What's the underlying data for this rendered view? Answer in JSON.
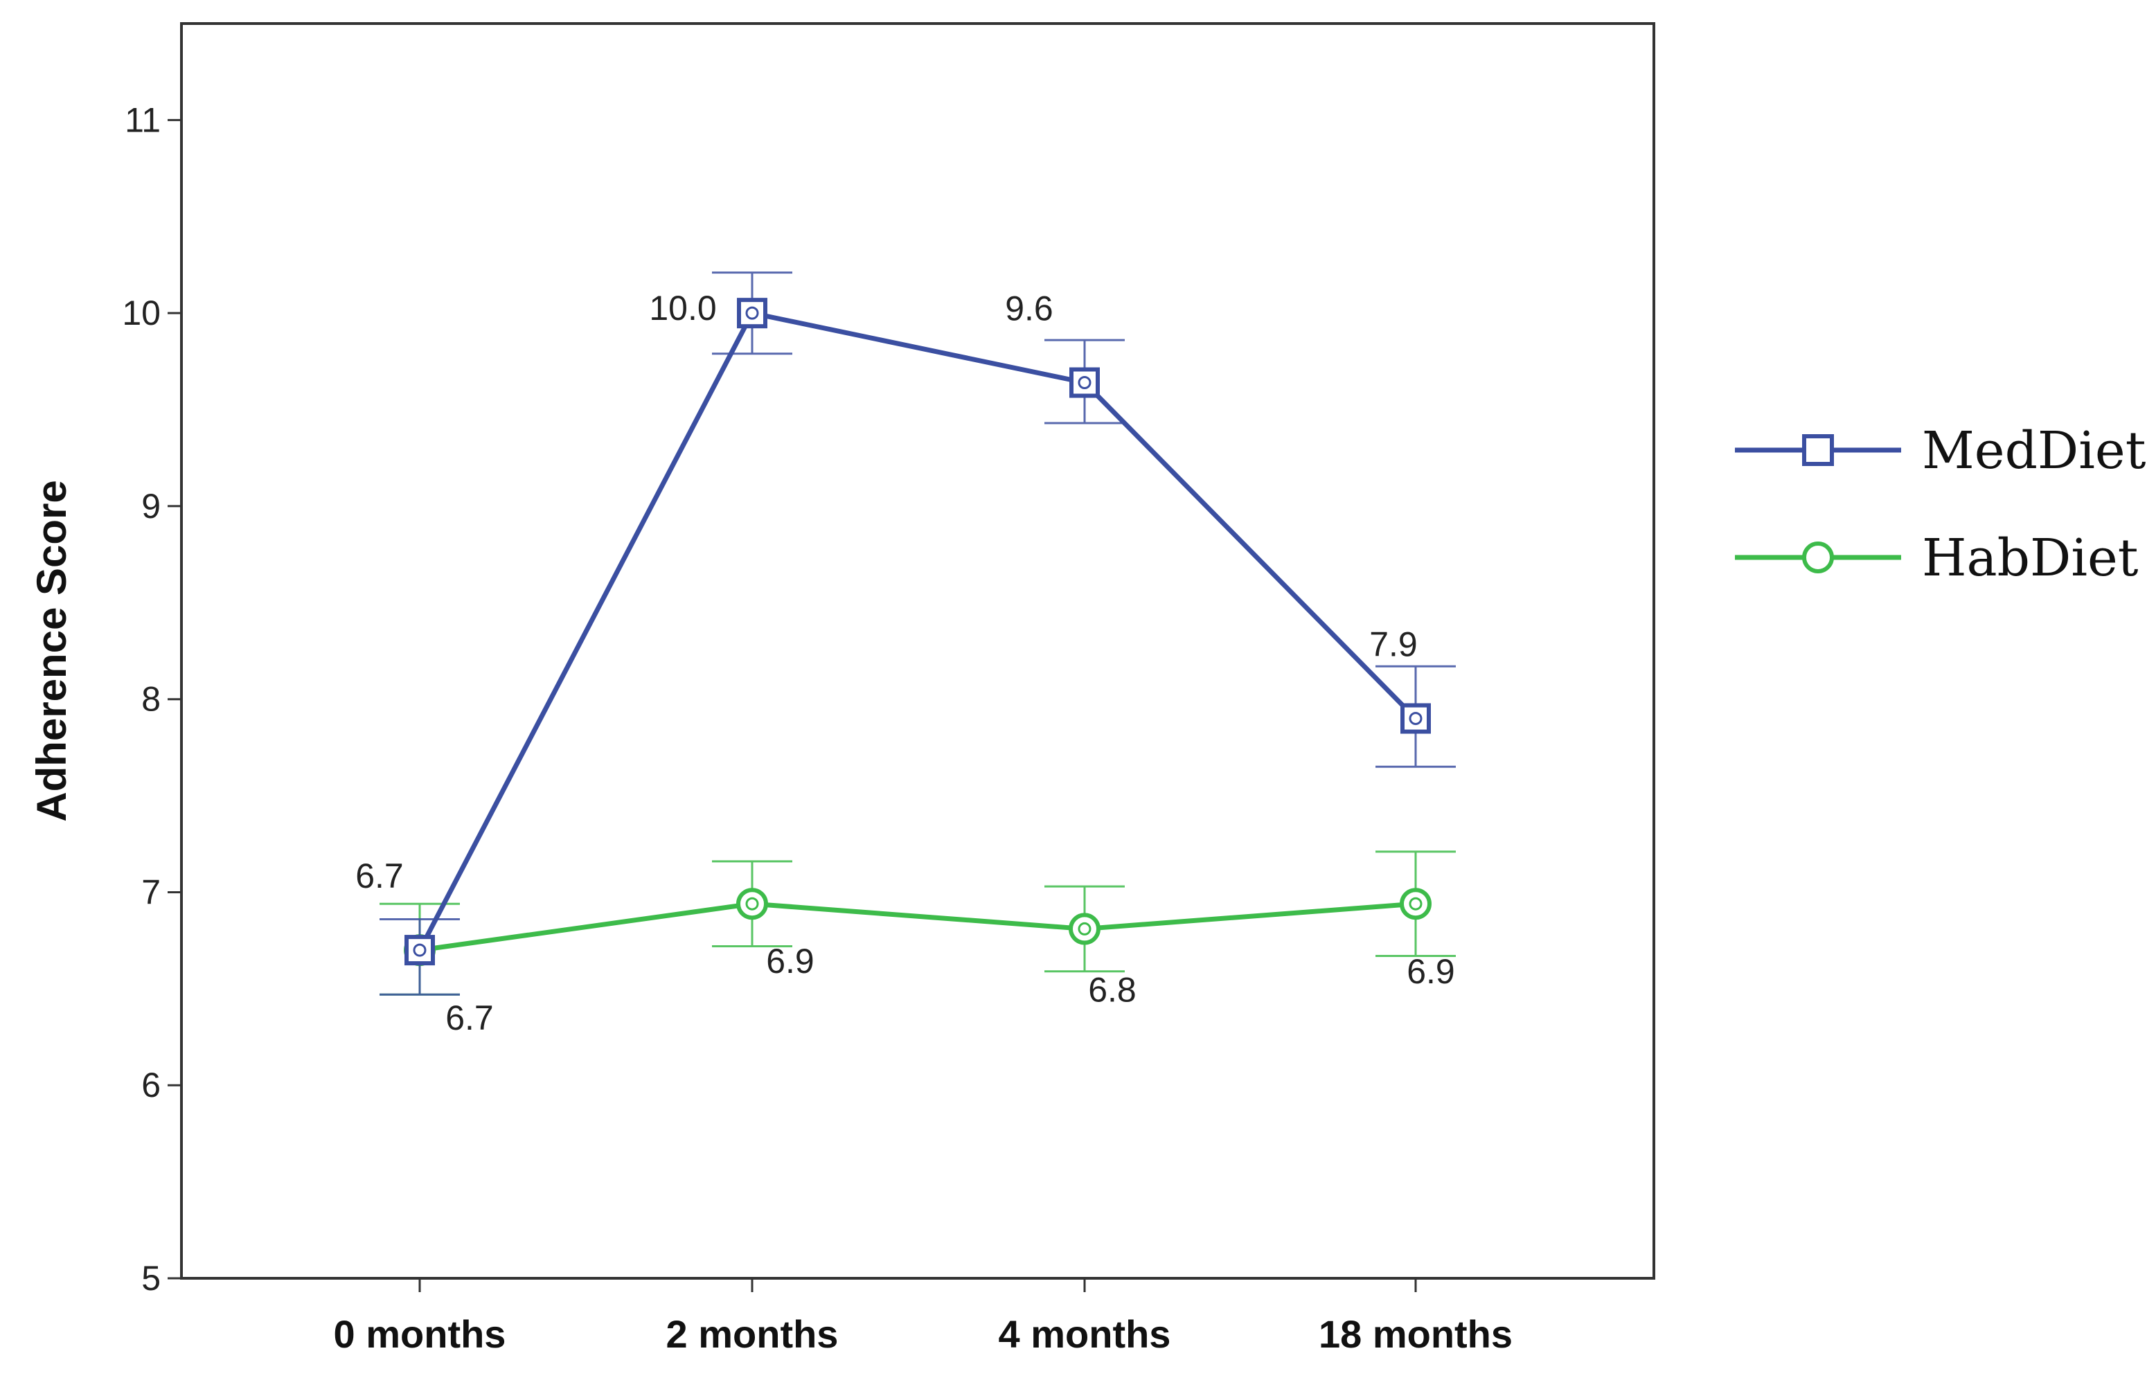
{
  "chart_data": {
    "type": "line",
    "title": "",
    "xlabel": "",
    "ylabel": "Adherence Score",
    "categories": [
      "0 months",
      "2 months",
      "4 months",
      "18 months"
    ],
    "ylim": [
      5,
      11.5
    ],
    "yticks": [
      5,
      6,
      7,
      8,
      9,
      10,
      11
    ],
    "grid": false,
    "legend_position": "right",
    "error_bars": true,
    "series": [
      {
        "name": "MedDiet",
        "color": "#3B4FA1",
        "marker": "square",
        "values": [
          6.7,
          10.0,
          9.64,
          7.9
        ],
        "error_low": [
          6.47,
          9.79,
          9.43,
          7.65
        ],
        "error_high": [
          6.86,
          10.21,
          9.86,
          8.17
        ],
        "data_labels": [
          "6.7",
          "10.0",
          "9.6",
          "7.9"
        ]
      },
      {
        "name": "HabDiet",
        "color": "#3DBB4A",
        "marker": "circle",
        "values": [
          6.7,
          6.94,
          6.81,
          6.94
        ],
        "error_low": [
          6.47,
          6.72,
          6.59,
          6.67
        ],
        "error_high": [
          6.94,
          7.16,
          7.03,
          7.21
        ],
        "data_labels": [
          "6.7",
          "6.9",
          "6.8",
          "6.9"
        ]
      }
    ]
  }
}
